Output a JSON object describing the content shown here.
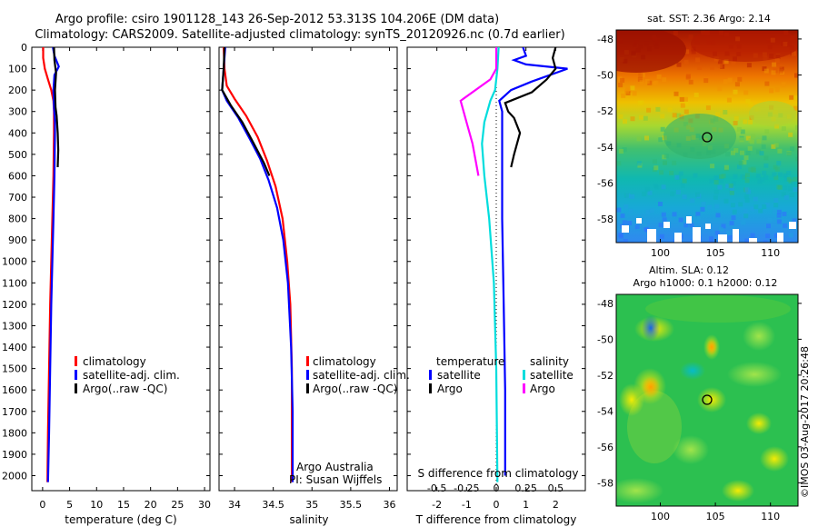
{
  "header": {
    "title_line1": "Argo profile: csiro 1901128_143 26-Sep-2012 53.313S 104.206E (DM data)",
    "title_line2": "Climatology: CARS2009. Satellite-adjusted climatology: synTS_20120926.nc (0.7d earlier)"
  },
  "chart_data": [
    {
      "id": "temperature",
      "type": "line",
      "xlabel": "temperature (deg C)",
      "ylabel": "",
      "xlim": [
        -2,
        31
      ],
      "ylim": [
        2070,
        0
      ],
      "xticks": [
        0,
        5,
        10,
        15,
        20,
        25,
        30
      ],
      "yticks": [
        0,
        100,
        200,
        300,
        400,
        500,
        600,
        700,
        800,
        900,
        1000,
        1100,
        1200,
        1300,
        1400,
        1500,
        1600,
        1700,
        1800,
        1900,
        2000
      ],
      "legend": {
        "placement": "center-left",
        "entries": [
          "climatology",
          "satellite-adj. clim.",
          "Argo(..raw -QC)"
        ]
      },
      "series": [
        {
          "name": "climatology",
          "color": "#ff0000",
          "x": [
            0.1,
            0.1,
            0.4,
            1.0,
            1.6,
            2.0,
            2.1,
            2.1,
            2.0,
            1.8,
            1.6,
            1.4,
            1.2,
            1.0,
            0.9
          ],
          "y": [
            0,
            50,
            100,
            150,
            200,
            250,
            300,
            400,
            600,
            800,
            1000,
            1200,
            1500,
            1800,
            2030
          ]
        },
        {
          "name": "satellite-adj. clim.",
          "color": "#0000ff",
          "x": [
            1.9,
            2.2,
            3.0,
            2.2,
            2.0,
            2.1,
            2.3,
            2.3,
            2.2,
            2.0,
            1.8,
            1.6,
            1.4,
            1.2,
            1.0
          ],
          "y": [
            0,
            40,
            90,
            130,
            200,
            280,
            350,
            400,
            600,
            800,
            1000,
            1200,
            1500,
            1800,
            2030
          ]
        },
        {
          "name": "Argo(..raw -QC)",
          "color": "#000000",
          "x": [
            2.1,
            2.2,
            2.5,
            2.3,
            2.4,
            2.6,
            2.8,
            2.9,
            2.8
          ],
          "y": [
            0,
            60,
            120,
            200,
            280,
            320,
            400,
            480,
            560
          ]
        }
      ],
      "annotations": []
    },
    {
      "id": "salinity",
      "type": "line",
      "xlabel": "salinity",
      "xlim": [
        33.8,
        36.1
      ],
      "ylim": [
        2070,
        0
      ],
      "xticks": [
        34,
        34.5,
        35,
        35.5,
        36
      ],
      "xtick_labels": [
        "34",
        "34.5",
        "35",
        "35.5",
        "36"
      ],
      "legend": {
        "placement": "center-right",
        "entries": [
          "climatology",
          "satellite-adj. clim.",
          "Argo(..raw -QC)"
        ]
      },
      "series": [
        {
          "name": "climatology",
          "color": "#ff0000",
          "x": [
            33.86,
            33.87,
            33.9,
            34.0,
            34.15,
            34.3,
            34.42,
            34.53,
            34.62,
            34.68,
            34.72,
            34.74,
            34.74,
            34.74
          ],
          "y": [
            0,
            100,
            180,
            240,
            320,
            420,
            530,
            650,
            800,
            1000,
            1200,
            1500,
            1800,
            2030
          ]
        },
        {
          "name": "satellite-adj. clim.",
          "color": "#0000ff",
          "x": [
            33.88,
            33.86,
            33.84,
            33.9,
            34.05,
            34.2,
            34.33,
            34.44,
            34.55,
            34.63,
            34.69,
            34.73,
            34.75,
            34.75
          ],
          "y": [
            0,
            100,
            200,
            250,
            330,
            430,
            520,
            620,
            750,
            900,
            1100,
            1400,
            1700,
            2030
          ]
        },
        {
          "name": "Argo(..raw -QC)",
          "color": "#000000",
          "x": [
            33.87,
            33.86,
            33.84,
            33.95,
            34.1,
            34.25,
            34.38,
            34.45
          ],
          "y": [
            0,
            100,
            200,
            270,
            350,
            450,
            540,
            600
          ]
        }
      ],
      "annotations": [
        "Argo Australia",
        "PI: Susan Wijffels"
      ]
    },
    {
      "id": "difference",
      "type": "line",
      "xlabel": "T difference from climatology",
      "xlabel_top": "S difference from climatology",
      "xlim": [
        -3,
        3
      ],
      "ylim": [
        2070,
        0
      ],
      "xticks": [
        -2,
        -1,
        0,
        1,
        2
      ],
      "xtick_labels": [
        "-2",
        "-1",
        "0",
        "1",
        "2"
      ],
      "s_ticks": [
        -0.5,
        -0.25,
        0,
        0.25,
        0.5
      ],
      "s_tick_labels": [
        "-0.5",
        "-0.25",
        "0",
        "0.25",
        "0.5"
      ],
      "legend": {
        "placement": "center",
        "temperature_header": "temperature",
        "salinity_header": "salinity",
        "entries": [
          "satellite",
          "Argo",
          "satellite",
          "Argo"
        ]
      },
      "series": [
        {
          "name": "satellite",
          "group": "temperature",
          "color": "#0000ff",
          "x": [
            0.9,
            1.0,
            0.6,
            1.0,
            2.4,
            1.2,
            0.5,
            0.1,
            0.2,
            0.2,
            0.2,
            0.25,
            0.3,
            0.3
          ],
          "y": [
            0,
            40,
            60,
            80,
            100,
            160,
            200,
            250,
            300,
            500,
            800,
            1200,
            1600,
            2000
          ]
        },
        {
          "name": "Argo",
          "group": "temperature",
          "color": "#000000",
          "x": [
            2.0,
            1.9,
            2.0,
            1.7,
            1.2,
            0.3,
            0.4,
            0.6,
            0.8,
            0.6,
            0.5
          ],
          "y": [
            0,
            50,
            100,
            150,
            210,
            260,
            300,
            330,
            400,
            500,
            560
          ]
        },
        {
          "name": "satellite",
          "group": "salinity",
          "color": "#00dddd",
          "x": [
            0.02,
            0.01,
            -0.01,
            -0.05,
            -0.1,
            -0.12,
            -0.1,
            -0.06,
            -0.02,
            0.0,
            0.01
          ],
          "y": [
            0,
            100,
            200,
            250,
            350,
            450,
            600,
            800,
            1100,
            1500,
            2030
          ]
        },
        {
          "name": "Argo",
          "group": "salinity",
          "color": "#ff00ff",
          "x": [
            0.0,
            0.0,
            -0.05,
            -0.3,
            -0.25,
            -0.2,
            -0.15
          ],
          "y": [
            0,
            100,
            150,
            250,
            350,
            450,
            600
          ]
        }
      ],
      "annotations": []
    }
  ],
  "maps": [
    {
      "id": "sst_map",
      "title": "sat. SST: 2.36 Argo: 2.14",
      "y_ticks": [
        "-48",
        "-50",
        "-52",
        "-54",
        "-56",
        "-58"
      ],
      "x_ticks": [
        "100",
        "105",
        "110"
      ],
      "float_marker": "Argo float position"
    },
    {
      "id": "sla_map",
      "title_line1": "Altim. SLA: 0.12",
      "title_line2": "Argo h1000: 0.1 h2000: 0.12",
      "y_ticks": [
        "-48",
        "-50",
        "-52",
        "-54",
        "-56",
        "-58"
      ],
      "x_ticks": [
        "100",
        "105",
        "110"
      ],
      "float_marker": "Argo float position"
    }
  ],
  "footer": {
    "credit": "©IMOS 03-Aug-2017 20:26:48"
  }
}
